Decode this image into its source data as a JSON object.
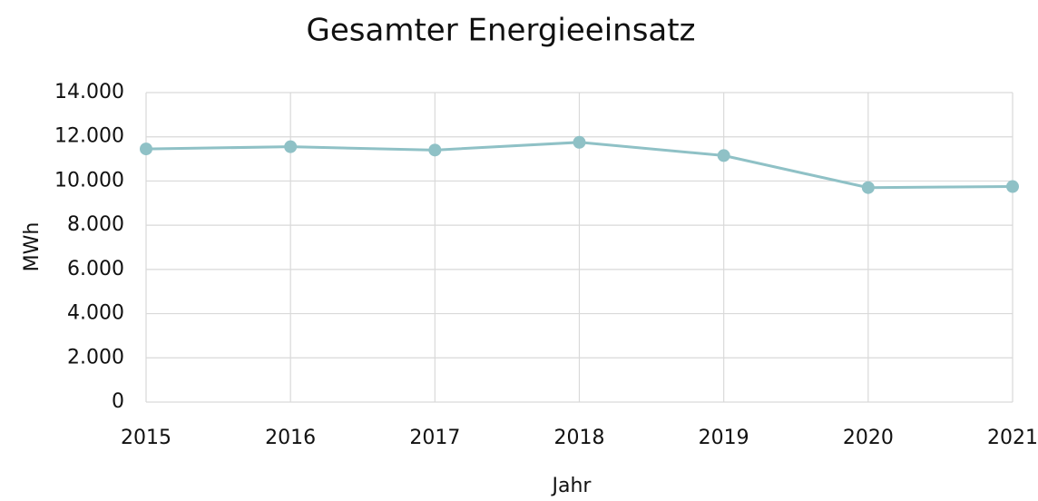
{
  "chart_data": {
    "type": "line",
    "title": "Gesamter Energieeinsatz",
    "x_label": "Jahr",
    "y_label": "MWh",
    "x": [
      2015,
      2016,
      2017,
      2018,
      2019,
      2020,
      2021
    ],
    "series": [
      {
        "name": "Gesamter Energieeinsatz",
        "color": "#8fc1c6",
        "values": [
          11450,
          11550,
          11400,
          11750,
          11150,
          9700,
          9750
        ]
      }
    ],
    "xlim": [
      2015,
      2021
    ],
    "xticks": [
      2015,
      2016,
      2017,
      2018,
      2019,
      2020,
      2021
    ],
    "ylim": [
      0,
      14000
    ],
    "yticks": [
      0,
      {
        "value": 2000,
        "label": "2.000"
      },
      {
        "value": 4000,
        "label": "4.000"
      },
      {
        "value": 6000,
        "label": "6.000"
      },
      {
        "value": 8000,
        "label": "8.000"
      },
      {
        "value": 10000,
        "label": "10.000"
      },
      {
        "value": 12000,
        "label": "12.000"
      },
      {
        "value": 14000,
        "label": "14.000"
      }
    ],
    "grid": true
  }
}
